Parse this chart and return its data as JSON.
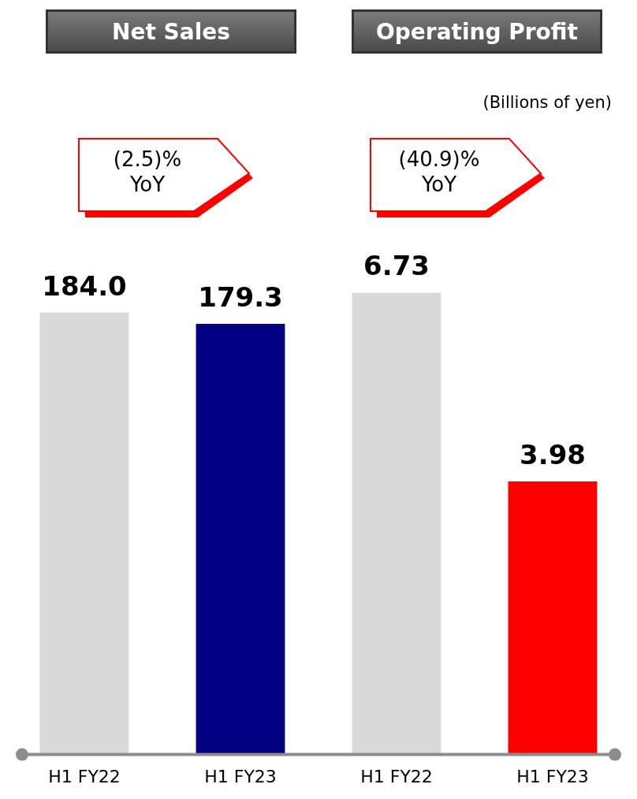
{
  "chart_data": [
    {
      "type": "bar",
      "title": "Net Sales",
      "categories": [
        "H1 FY22",
        "H1 FY23"
      ],
      "values": [
        184.0,
        179.3
      ],
      "colors": [
        "#d9d9d9",
        "#000080"
      ],
      "value_labels": [
        "184.0",
        "179.3"
      ],
      "annotations": [
        "(2.5)% YoY"
      ]
    },
    {
      "type": "bar",
      "title": "Operating Profit",
      "categories": [
        "H1 FY22",
        "H1 FY23"
      ],
      "values": [
        6.73,
        3.98
      ],
      "colors": [
        "#d9d9d9",
        "#ff0000"
      ],
      "value_labels": [
        "6.73",
        "3.98"
      ],
      "annotations": [
        "(Billions of yen)",
        "(40.9)% YoY"
      ]
    }
  ]
}
